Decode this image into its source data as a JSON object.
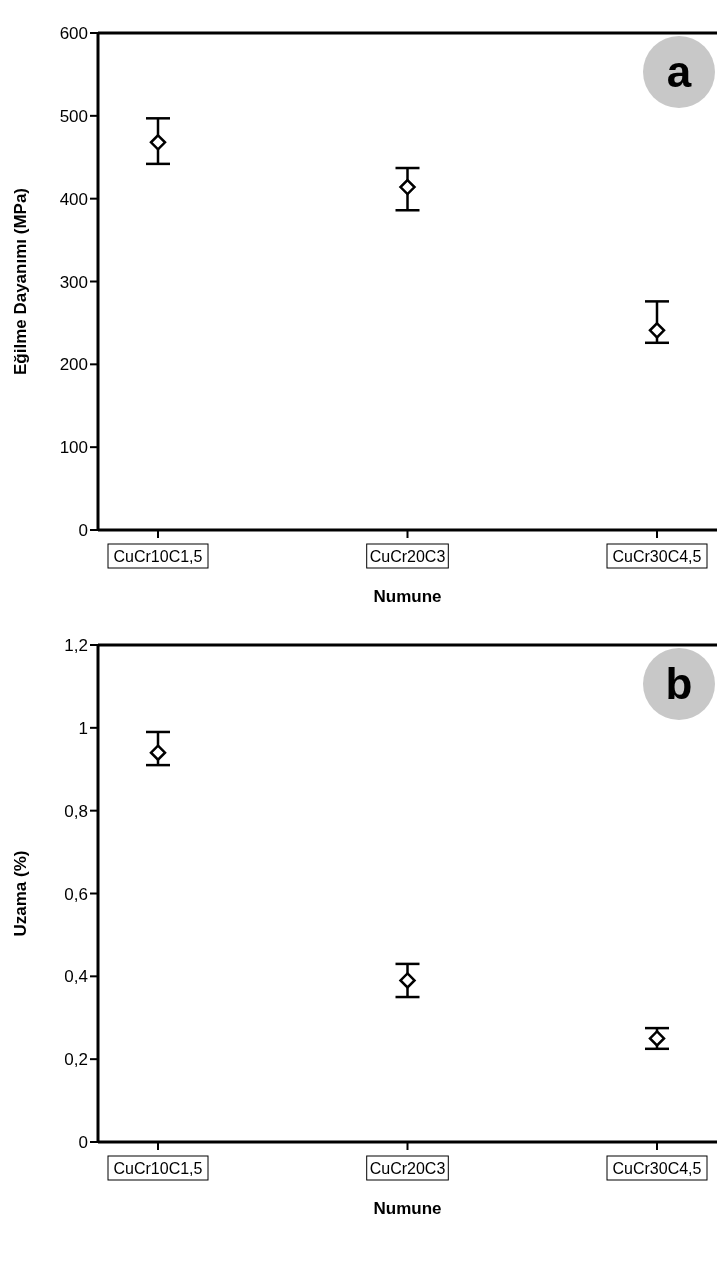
{
  "chart_data": [
    {
      "type": "scatter",
      "xlabel": "Numune",
      "ylabel": "Eğilme Dayanımı (MPa)",
      "annotations": [
        "a"
      ],
      "categories": [
        "CuCr10C1,5",
        "CuCr20C3",
        "CuCr30C4,5"
      ],
      "series": [
        {
          "color": "#000000",
          "values": [
            468,
            414,
            241
          ],
          "errors": [
            [
              442,
              497
            ],
            [
              386,
              437
            ],
            [
              226,
              276
            ]
          ]
        }
      ],
      "ylim": [
        0,
        600
      ],
      "yticks": [
        0,
        100,
        200,
        300,
        400,
        500,
        600
      ],
      "marker": "diamond",
      "grid": false,
      "legend": false
    },
    {
      "type": "scatter",
      "xlabel": "Numune",
      "ylabel": "Uzama (%)",
      "annotations": [
        "b"
      ],
      "categories": [
        "CuCr10C1,5",
        "CuCr20C3",
        "CuCr30C4,5"
      ],
      "series": [
        {
          "color": "#000000",
          "values": [
            0.94,
            0.39,
            0.25
          ],
          "errors": [
            [
              0.91,
              0.99
            ],
            [
              0.35,
              0.43
            ],
            [
              0.225,
              0.275
            ]
          ]
        }
      ],
      "ylim": [
        0,
        1.2
      ],
      "yticks": [
        0,
        {
          "value": 0.2,
          "label": "0,2"
        },
        {
          "value": 0.4,
          "label": "0,4"
        },
        {
          "value": 0.6,
          "label": "0,6"
        },
        {
          "value": 0.8,
          "label": "0,8"
        },
        1,
        {
          "value": 1.2,
          "label": "1,2"
        }
      ],
      "marker": "diamond",
      "grid": false,
      "legend": false
    }
  ]
}
